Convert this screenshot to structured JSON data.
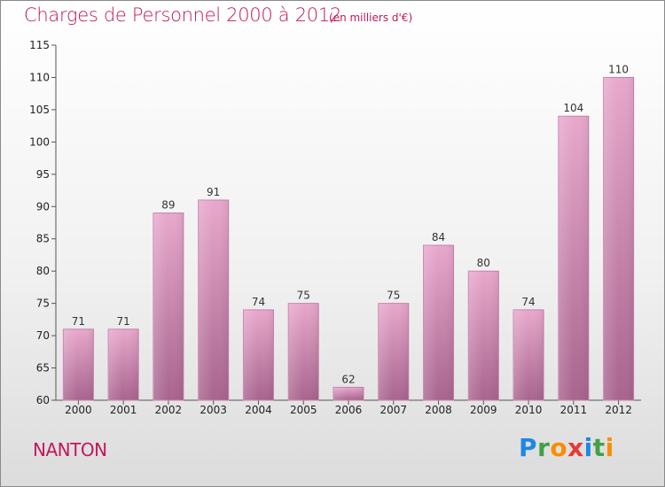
{
  "header": {
    "title": "Charges de Personnel 2000 à 2012",
    "subtitle": "(en milliers d'€)"
  },
  "commune": "NANTON",
  "logo": {
    "letters": [
      {
        "char": "P",
        "color": "#1e88e5"
      },
      {
        "char": "r",
        "color": "#43a047"
      },
      {
        "char": "o",
        "color": "#fb8c00"
      },
      {
        "char": "x",
        "color": "#e53935"
      },
      {
        "char": "i",
        "color": "#1e88e5"
      },
      {
        "char": "t",
        "color": "#43a047"
      },
      {
        "char": "i",
        "color": "#fb8c00"
      }
    ]
  },
  "colors": {
    "title": "#c2185b",
    "bar_top": "#e8a8cc",
    "bar_bottom": "#a8648e"
  },
  "chart_data": {
    "type": "bar",
    "title": "Charges de Personnel 2000 à 2012",
    "subtitle": "(en milliers d'€)",
    "categories": [
      "2000",
      "2001",
      "2002",
      "2003",
      "2004",
      "2005",
      "2006",
      "2007",
      "2008",
      "2009",
      "2010",
      "2011",
      "2012"
    ],
    "values": [
      71,
      71,
      89,
      91,
      74,
      75,
      62,
      75,
      84,
      80,
      74,
      104,
      110
    ],
    "xlabel": "",
    "ylabel": "",
    "ylim": [
      60,
      115
    ],
    "yticks": [
      60,
      65,
      70,
      75,
      80,
      85,
      90,
      95,
      100,
      105,
      110,
      115
    ],
    "grid": false,
    "data_labels": true
  }
}
